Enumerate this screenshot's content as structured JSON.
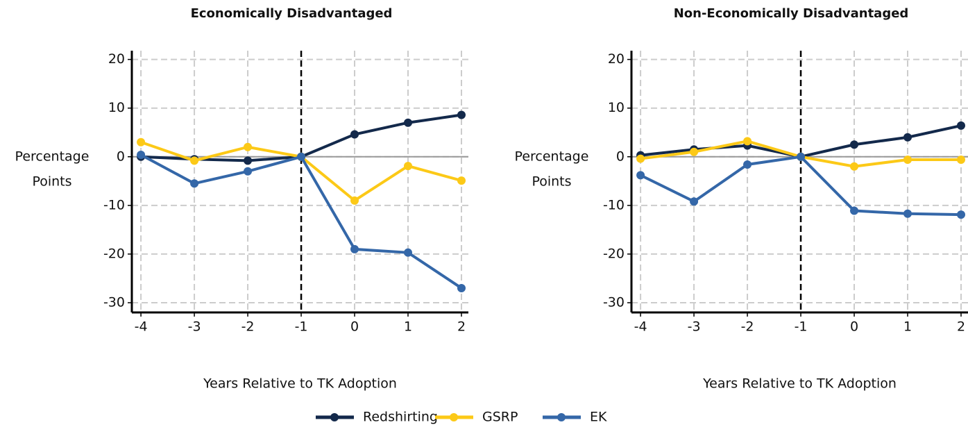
{
  "chart_data": [
    {
      "type": "line",
      "title": "Economically Disadvantaged",
      "ylabel": [
        "Percentage",
        "Points"
      ],
      "xlabel": "Years Relative to TK Adoption",
      "x": [
        -4,
        -3,
        -2,
        -1,
        0,
        1,
        2
      ],
      "xlim": [
        -4.17,
        2.13
      ],
      "xticks": [
        -4,
        -3,
        -2,
        -1,
        0,
        1,
        2
      ],
      "ylim": [
        -32,
        21.8
      ],
      "yticks": [
        20,
        10,
        0,
        -10,
        -20,
        -30
      ],
      "grid": true,
      "hline": 0,
      "vline": -1,
      "series": [
        {
          "name": "Redshirting",
          "color": "#13294b",
          "values": [
            0,
            -0.5,
            -0.8,
            0,
            4.6,
            7,
            8.6
          ]
        },
        {
          "name": "GSRP",
          "color": "#fcc917",
          "values": [
            3,
            -0.8,
            2,
            0,
            -9,
            -1.9,
            -4.9
          ]
        },
        {
          "name": "EK",
          "color": "#3467a8",
          "values": [
            0.4,
            -5.5,
            -3,
            0,
            -19,
            -19.7,
            -27
          ]
        }
      ]
    },
    {
      "type": "line",
      "title": "Non-Economically Disadvantaged",
      "ylabel": [
        "Percentage",
        "Points"
      ],
      "xlabel": "Years Relative to TK Adoption",
      "x": [
        -4,
        -3,
        -2,
        -1,
        0,
        1,
        2
      ],
      "xlim": [
        -4.17,
        2.13
      ],
      "xticks": [
        -4,
        -3,
        -2,
        -1,
        0,
        1,
        2
      ],
      "ylim": [
        -32,
        21.8
      ],
      "yticks": [
        20,
        10,
        0,
        -10,
        -20,
        -30
      ],
      "grid": true,
      "hline": 0,
      "vline": -1,
      "series": [
        {
          "color": "#13294b",
          "values": [
            0.3,
            1.5,
            2.3,
            0,
            2.5,
            4,
            6.4
          ]
        },
        {
          "color": "#fcc917",
          "values": [
            -0.4,
            1,
            3.2,
            0,
            -2,
            -0.6,
            -0.6
          ]
        },
        {
          "color": "#3467a8",
          "values": [
            -3.8,
            -9.2,
            -1.6,
            0,
            -11.1,
            -11.7,
            -11.9
          ]
        }
      ]
    }
  ]
}
